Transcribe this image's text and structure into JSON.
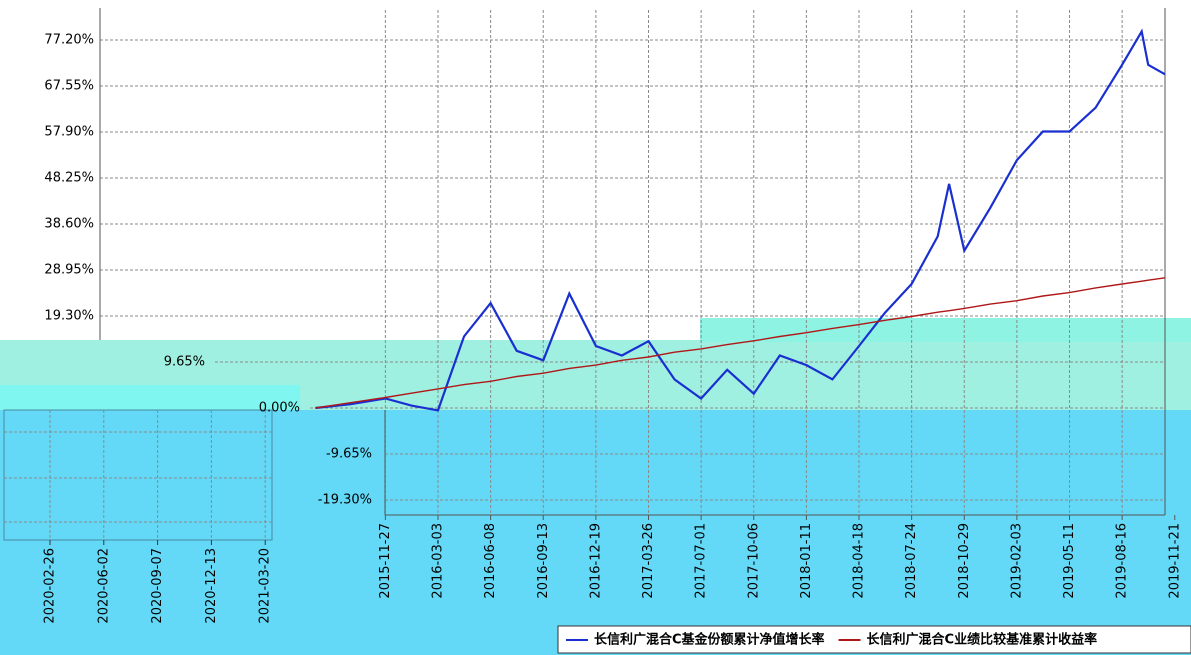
{
  "chart_data": [
    {
      "type": "line",
      "x": [
        "2015-07-21",
        "2015-09-24",
        "2015-11-27",
        "2016-01-14",
        "2016-03-03",
        "2016-04-20",
        "2016-06-08",
        "2016-07-26",
        "2016-09-13",
        "2016-10-31",
        "2016-12-19",
        "2017-02-05",
        "2017-03-26",
        "2017-05-13",
        "2017-07-01",
        "2017-08-18",
        "2017-10-06",
        "2017-11-23",
        "2018-01-11",
        "2018-02-28",
        "2018-04-18",
        "2018-06-05",
        "2018-07-24",
        "2018-09-10",
        "2018-10-01",
        "2018-10-29",
        "2018-12-16",
        "2019-02-03",
        "2019-03-23",
        "2019-05-11",
        "2019-06-28",
        "2019-08-16",
        "2019-09-21",
        "2019-10-03",
        "2019-11-03"
      ],
      "series": [
        {
          "name": "长信利广混合C基金份额累计净值增长率",
          "color": "#1a2fd0",
          "values": [
            0,
            0.8,
            2.0,
            0.5,
            -0.5,
            15,
            22,
            12,
            10,
            24,
            13,
            11,
            14,
            6,
            2,
            8,
            3,
            11,
            9,
            6,
            13,
            20,
            26,
            36,
            47,
            33,
            42,
            52,
            58,
            58,
            63,
            72,
            79,
            72,
            70
          ]
        },
        {
          "name": "长信利广混合C业绩比较基准累计收益率",
          "color": "#b01818",
          "values": [
            0,
            1.1,
            2.2,
            3.1,
            4.0,
            4.9,
            5.6,
            6.6,
            7.3,
            8.3,
            9.0,
            10.0,
            10.7,
            11.7,
            12.4,
            13.3,
            14.1,
            15.0,
            15.8,
            16.7,
            17.5,
            18.4,
            19.2,
            20.1,
            20.4,
            20.9,
            21.8,
            22.5,
            23.5,
            24.2,
            25.2,
            26.0,
            26.6,
            26.8,
            27.3
          ]
        }
      ],
      "xlim": [
        "2014-06-19",
        "2019-11-03"
      ],
      "xticks": [
        "2015-11-27",
        "2016-03-03",
        "2016-06-08",
        "2016-09-13",
        "2016-12-19",
        "2017-03-26",
        "2017-07-01",
        "2017-10-06",
        "2018-01-11",
        "2018-04-18",
        "2018-07-24",
        "2018-10-29",
        "2019-02-03",
        "2019-05-11",
        "2019-08-16",
        "2019-11-21"
      ],
      "ylim": [
        -22.45,
        83.49
      ],
      "yticks": [
        {
          "value": 77.2,
          "label": "77.20%"
        },
        {
          "value": 67.55,
          "label": "67.55%"
        },
        {
          "value": 57.9,
          "label": "57.90%"
        },
        {
          "value": 48.25,
          "label": "48.25%"
        },
        {
          "value": 38.6,
          "label": "38.60%"
        },
        {
          "value": 28.95,
          "label": "28.95%"
        },
        {
          "value": 19.3,
          "label": "19.30%"
        },
        {
          "value": 9.65,
          "label": "9.65%"
        },
        {
          "value": 0,
          "label": "0.00%"
        },
        {
          "value": -9.65,
          "label": "-9.65%"
        },
        {
          "value": -19.3,
          "label": "-19.30%"
        }
      ],
      "grid": true
    },
    {
      "type": "ghost",
      "xticks": [
        "2020-02-26",
        "2020-06-02",
        "2020-09-07",
        "2020-12-13",
        "2021-03-20"
      ]
    }
  ]
}
